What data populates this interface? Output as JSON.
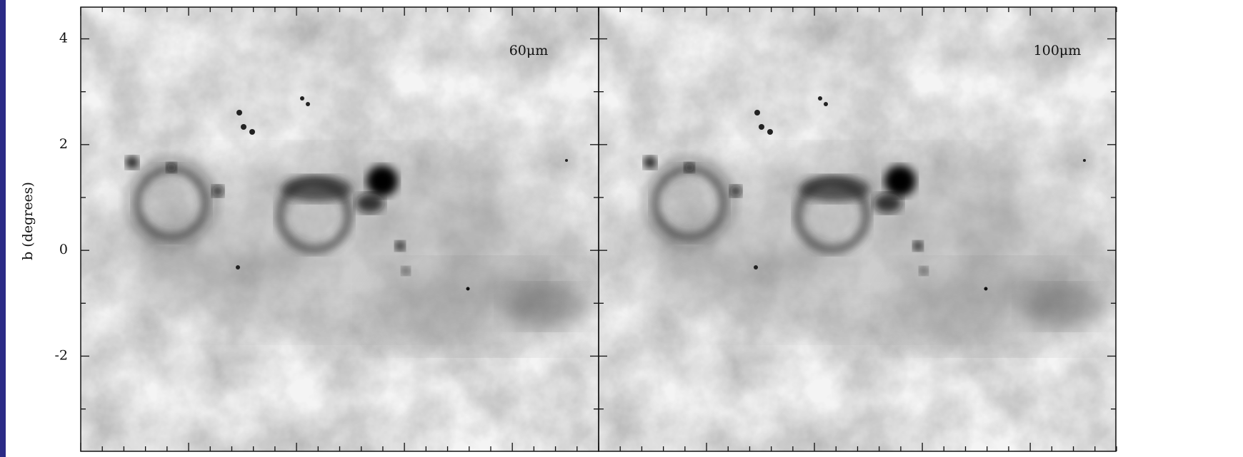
{
  "chart_data": {
    "type": "image",
    "ylabel": "b (degrees)",
    "panels": [
      "60μm",
      "100μm"
    ],
    "ylim": [
      -3.8,
      4.6
    ],
    "yticks": [
      -2,
      0,
      2,
      4
    ],
    "yminorticks": [
      -3,
      -1,
      1,
      3
    ]
  }
}
